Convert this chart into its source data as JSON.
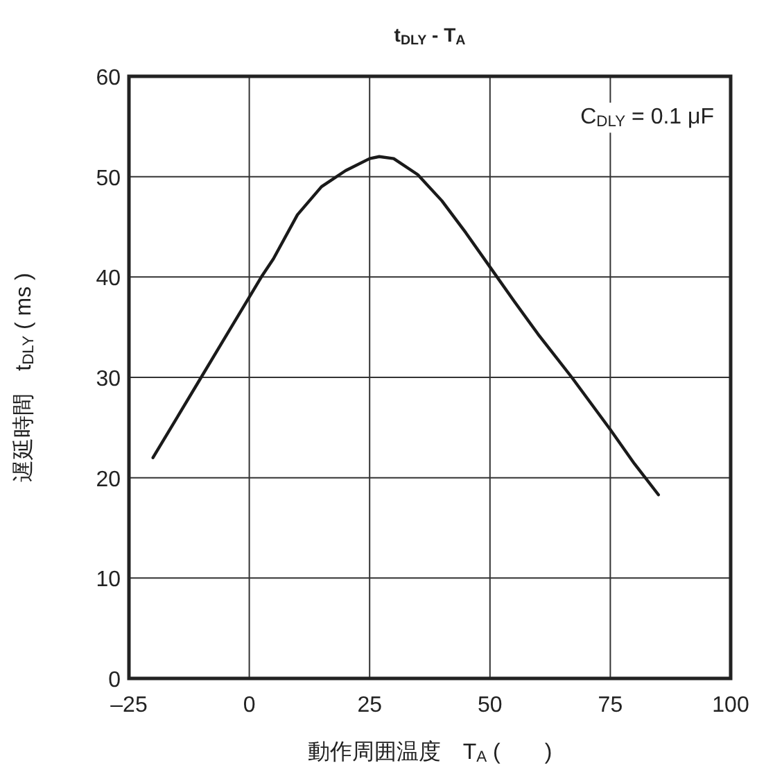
{
  "chart_data": {
    "type": "line",
    "title": "t$_{DLY}$ - T$_{A}$",
    "xlabel": "動作周囲温度　T$_{A}$ (　　)",
    "ylabel": "遅延時間　t$_{DLY}$ ( ms )",
    "annotations": [
      "C$_{DLY}$ = 0.1 μF"
    ],
    "series": [
      {
        "color": "#1a1a1a",
        "x": [
          -20,
          -10,
          -5,
          0,
          2.5,
          5,
          10,
          15,
          20,
          25,
          27,
          30,
          35,
          40,
          45,
          50,
          55,
          60,
          67,
          75,
          80,
          85
        ],
        "values": [
          22,
          30,
          34,
          38,
          40,
          41.8,
          46.2,
          49,
          50.6,
          51.8,
          52,
          51.8,
          50.2,
          47.6,
          44.4,
          41,
          37.6,
          34.3,
          30,
          24.8,
          21.4,
          18.3
        ]
      }
    ],
    "xlim": [
      -25,
      100
    ],
    "ylim": [
      0,
      60
    ],
    "xticks": [
      {
        "value": -25,
        "label": "–25"
      },
      0,
      25,
      50,
      75,
      100
    ],
    "yticks": [
      0,
      10,
      20,
      30,
      40,
      50,
      60
    ],
    "grid": true,
    "line_style": "solid"
  }
}
